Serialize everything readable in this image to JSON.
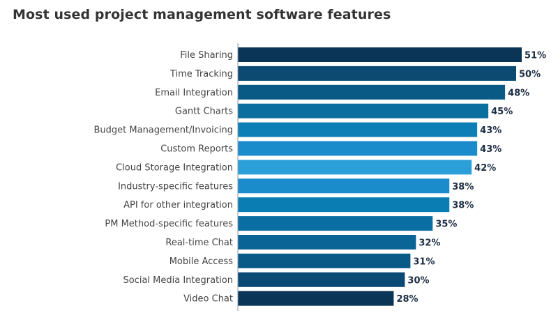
{
  "chart_data": {
    "type": "bar",
    "orientation": "horizontal",
    "title": "Most used project management software features",
    "categories": [
      "File Sharing",
      "Time Tracking",
      "Email Integration",
      "Gantt Charts",
      "Budget Management/Invoicing",
      "Custom Reports",
      "Cloud Storage Integration",
      "Industry-specific features",
      "API for other integration",
      "PM Method-specific features",
      "Real-time Chat",
      "Mobile Access",
      "Social Media Integration",
      "Video Chat"
    ],
    "values": [
      51,
      50,
      48,
      45,
      43,
      43,
      42,
      38,
      38,
      35,
      32,
      31,
      30,
      28
    ],
    "value_labels": [
      "51%",
      "50%",
      "48%",
      "45%",
      "43%",
      "43%",
      "42%",
      "38%",
      "38%",
      "35%",
      "32%",
      "31%",
      "30%",
      "28%"
    ],
    "unit": "%",
    "xlim": [
      0,
      51
    ],
    "grid": false,
    "colors": [
      "#0b3556",
      "#0c4a72",
      "#0a5a86",
      "#0a6e9e",
      "#0b7fb6",
      "#1a8ccb",
      "#2ba0d8",
      "#1a8ccb",
      "#0a7db3",
      "#0a6ea2",
      "#0a6496",
      "#0a5a88",
      "#0b4a74",
      "#0b3556"
    ]
  }
}
